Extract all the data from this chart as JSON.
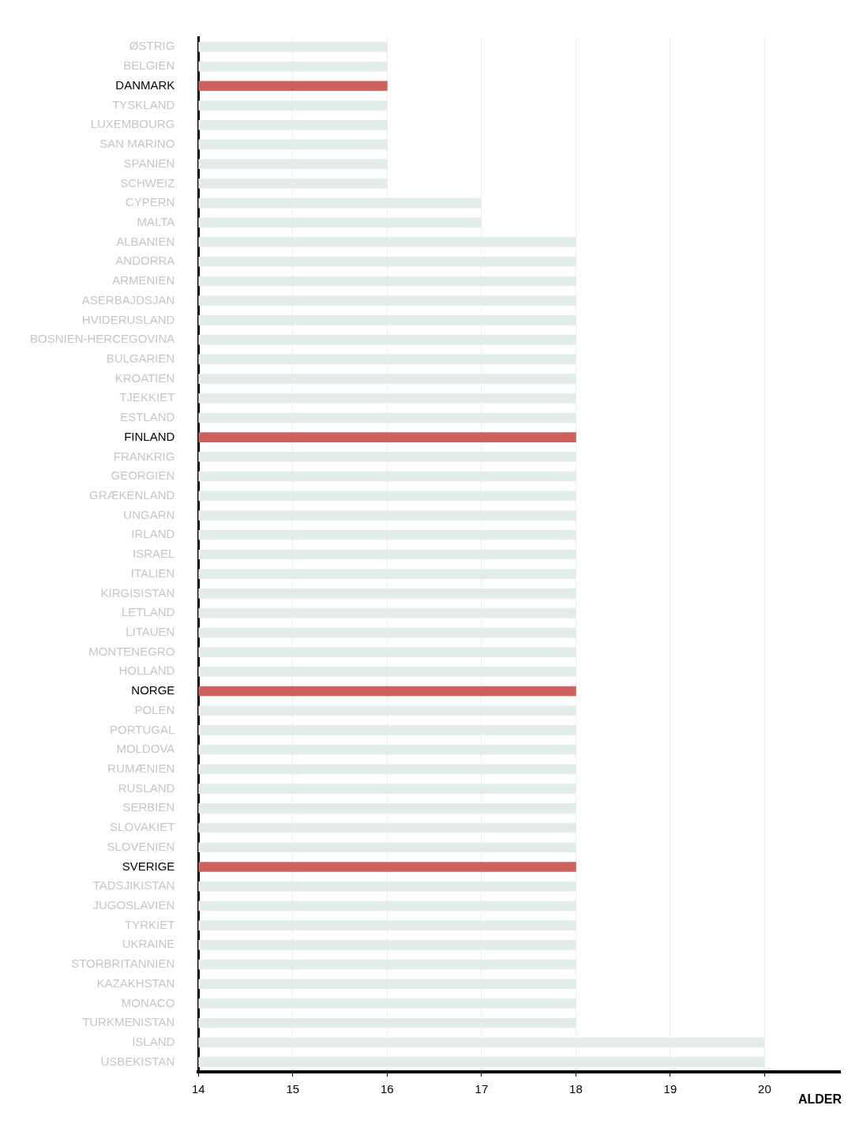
{
  "chart_data": {
    "type": "bar",
    "orientation": "horizontal",
    "xlabel": "ALDER",
    "categories": [
      "ØSTRIG",
      "BELGIEN",
      "DANMARK",
      "TYSKLAND",
      "LUXEMBOURG",
      "SAN MARINO",
      "SPANIEN",
      "SCHWEIZ",
      "CYPERN",
      "MALTA",
      "ALBANIEN",
      "ANDORRA",
      "ARMENIEN",
      "ASERBAJDSJAN",
      "HVIDERUSLAND",
      "BOSNIEN-HERCEGOVINA",
      "BULGARIEN",
      "KROATIEN",
      "TJEKKIET",
      "ESTLAND",
      "FINLAND",
      "FRANKRIG",
      "GEORGIEN",
      "GRÆKENLAND",
      "UNGARN",
      "IRLAND",
      "ISRAEL",
      "ITALIEN",
      "KIRGISISTAN",
      "LETLAND",
      "LITAUEN",
      "MONTENEGRO",
      "HOLLAND",
      "NORGE",
      "POLEN",
      "PORTUGAL",
      "MOLDOVA",
      "RUMÆNIEN",
      "RUSLAND",
      "SERBIEN",
      "SLOVAKIET",
      "SLOVENIEN",
      "SVERIGE",
      "TADSJIKISTAN",
      "JUGOSLAVIEN",
      "TYRKIET",
      "UKRAINE",
      "STORBRITANNIEN",
      "KAZAKHSTAN",
      "MONACO",
      "TURKMENISTAN",
      "ISLAND",
      "USBEKISTAN"
    ],
    "values": [
      16,
      16,
      16,
      16,
      16,
      16,
      16,
      16,
      17,
      17,
      18,
      18,
      18,
      18,
      18,
      18,
      18,
      18,
      18,
      18,
      18,
      18,
      18,
      18,
      18,
      18,
      18,
      18,
      18,
      18,
      18,
      18,
      18,
      18,
      18,
      18,
      18,
      18,
      18,
      18,
      18,
      18,
      18,
      18,
      18,
      18,
      18,
      18,
      18,
      18,
      18,
      20,
      20
    ],
    "colors": [
      "#e3ece9",
      "#e3ece9",
      "#cd625c",
      "#e3ece9",
      "#e3ece9",
      "#e3ece9",
      "#e3ece9",
      "#e3ece9",
      "#e3ece9",
      "#e3ece9",
      "#e3ece9",
      "#e3ece9",
      "#e3ece9",
      "#e3ece9",
      "#e3ece9",
      "#e3ece9",
      "#e3ece9",
      "#e3ece9",
      "#e3ece9",
      "#e3ece9",
      "#cd625c",
      "#e3ece9",
      "#e3ece9",
      "#e3ece9",
      "#e3ece9",
      "#e3ece9",
      "#e3ece9",
      "#e3ece9",
      "#e3ece9",
      "#e3ece9",
      "#e3ece9",
      "#e3ece9",
      "#e3ece9",
      "#cd625c",
      "#e3ece9",
      "#e3ece9",
      "#e3ece9",
      "#e3ece9",
      "#e3ece9",
      "#e3ece9",
      "#e3ece9",
      "#e3ece9",
      "#cd625c",
      "#e3ece9",
      "#e3ece9",
      "#e3ece9",
      "#e3ece9",
      "#e3ece9",
      "#e3ece9",
      "#e3ece9",
      "#e3ece9",
      "#e3ece9",
      "#e3ece9"
    ],
    "xlim": [
      14,
      20.8
    ],
    "xticks": [
      14,
      15,
      16,
      17,
      18,
      19,
      20
    ],
    "grid": "x"
  }
}
